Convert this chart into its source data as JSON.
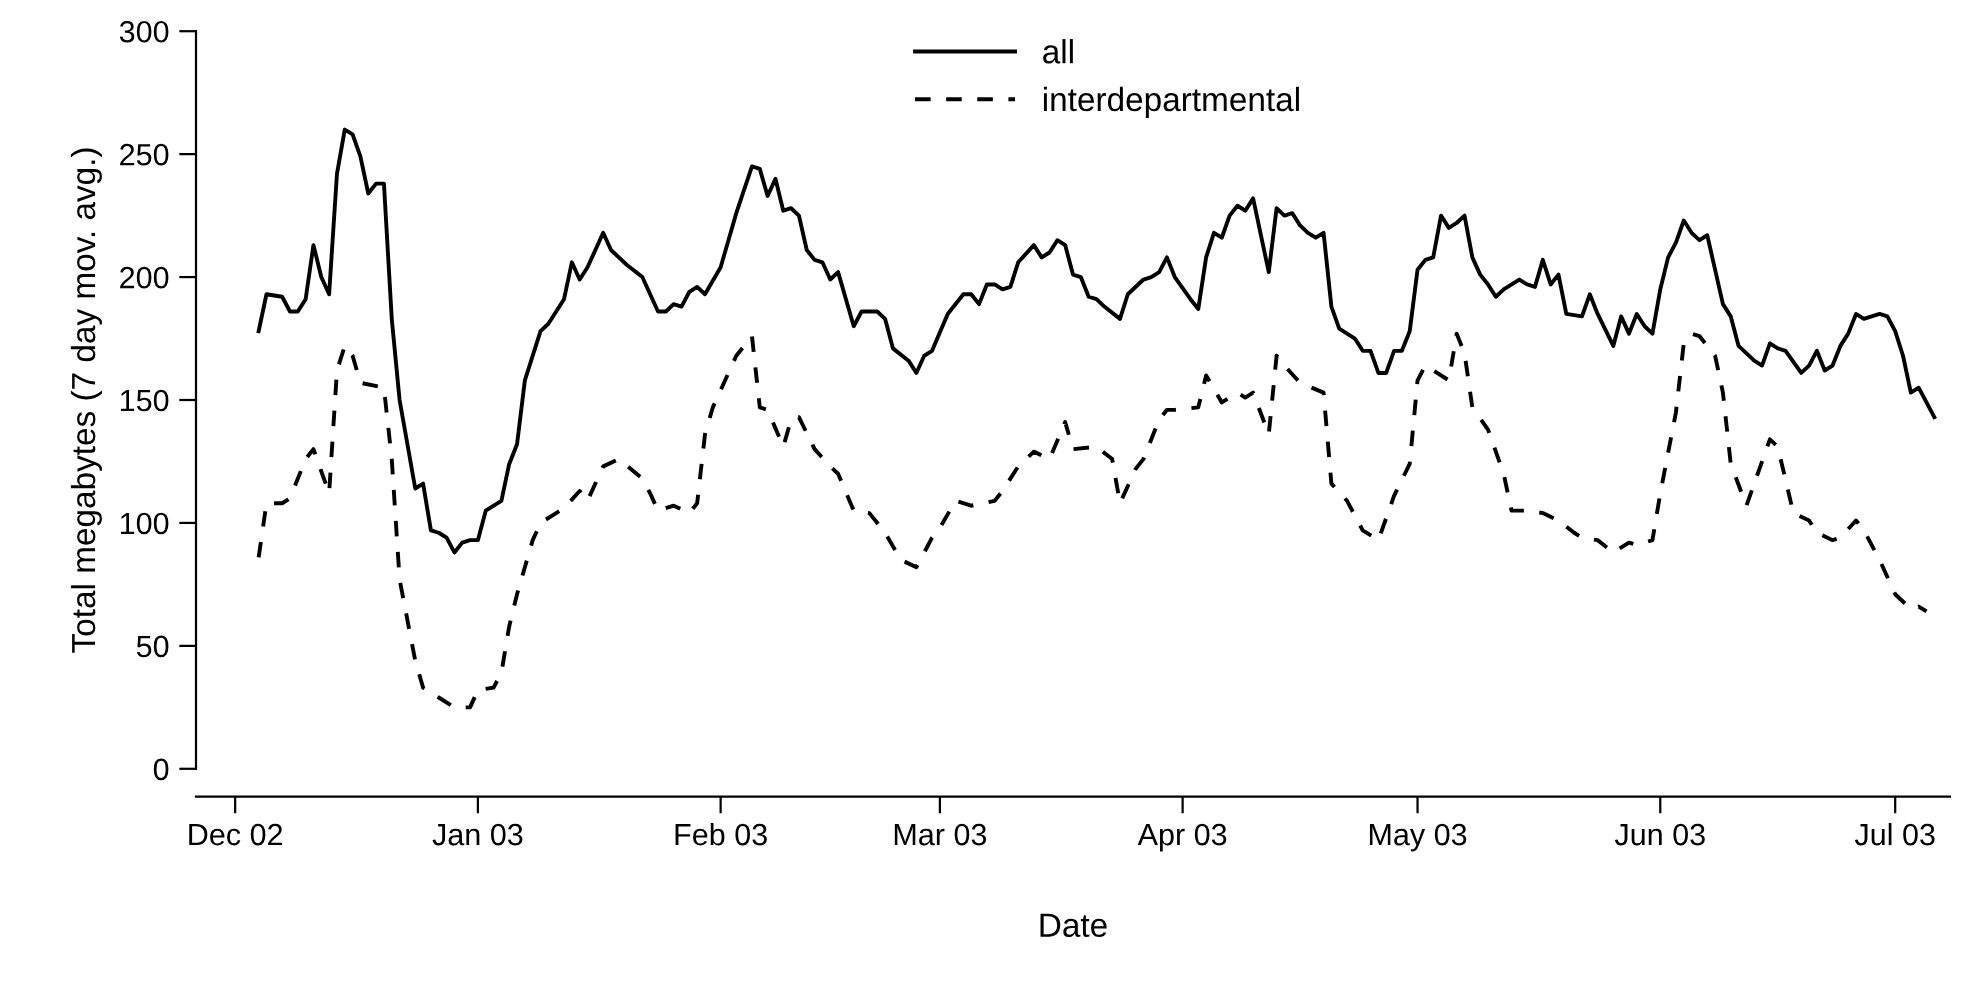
{
  "chart_data": {
    "type": "line",
    "xlabel": "Date",
    "ylabel": "Total megabytes (7 day mov. avg.)",
    "xlim": [
      "2002-11-26",
      "2003-07-08"
    ],
    "ylim": [
      0,
      300
    ],
    "xticks": [
      {
        "value": "2002-12-01",
        "label": "Dec 02"
      },
      {
        "value": "2003-01-01",
        "label": "Jan 03"
      },
      {
        "value": "2003-02-01",
        "label": "Feb 03"
      },
      {
        "value": "2003-03-01",
        "label": "Mar 03"
      },
      {
        "value": "2003-04-01",
        "label": "Apr 03"
      },
      {
        "value": "2003-05-01",
        "label": "May 03"
      },
      {
        "value": "2003-06-01",
        "label": "Jun 03"
      },
      {
        "value": "2003-07-01",
        "label": "Jul 03"
      }
    ],
    "yticks": [
      0,
      50,
      100,
      150,
      200,
      250,
      300
    ],
    "grid": false,
    "legend": "top",
    "marker": "none",
    "series": [
      {
        "name": "all",
        "color": "#000000",
        "line_style": "solid",
        "x": [
          "2002-12-04",
          "2002-12-05",
          "2002-12-07",
          "2002-12-08",
          "2002-12-09",
          "2002-12-10",
          "2002-12-11",
          "2002-12-12",
          "2002-12-13",
          "2002-12-14",
          "2002-12-15",
          "2002-12-16",
          "2002-12-17",
          "2002-12-18",
          "2002-12-19",
          "2002-12-20",
          "2002-12-21",
          "2002-12-22",
          "2002-12-24",
          "2002-12-25",
          "2002-12-26",
          "2002-12-27",
          "2002-12-28",
          "2002-12-29",
          "2002-12-30",
          "2002-12-31",
          "2003-01-01",
          "2003-01-02",
          "2003-01-04",
          "2003-01-05",
          "2003-01-06",
          "2003-01-07",
          "2003-01-09",
          "2003-01-10",
          "2003-01-12",
          "2003-01-13",
          "2003-01-14",
          "2003-01-15",
          "2003-01-17",
          "2003-01-18",
          "2003-01-19",
          "2003-01-20",
          "2003-01-22",
          "2003-01-23",
          "2003-01-24",
          "2003-01-25",
          "2003-01-26",
          "2003-01-27",
          "2003-01-28",
          "2003-01-29",
          "2003-01-30",
          "2003-02-01",
          "2003-02-02",
          "2003-02-03",
          "2003-02-05",
          "2003-02-06",
          "2003-02-07",
          "2003-02-08",
          "2003-02-09",
          "2003-02-10",
          "2003-02-11",
          "2003-02-12",
          "2003-02-13",
          "2003-02-14",
          "2003-02-15",
          "2003-02-16",
          "2003-02-18",
          "2003-02-19",
          "2003-02-21",
          "2003-02-22",
          "2003-02-23",
          "2003-02-25",
          "2003-02-26",
          "2003-02-27",
          "2003-02-28",
          "2003-03-02",
          "2003-03-04",
          "2003-03-05",
          "2003-03-06",
          "2003-03-07",
          "2003-03-08",
          "2003-03-09",
          "2003-03-10",
          "2003-03-11",
          "2003-03-13",
          "2003-03-14",
          "2003-03-15",
          "2003-03-16",
          "2003-03-17",
          "2003-03-18",
          "2003-03-19",
          "2003-03-20",
          "2003-03-21",
          "2003-03-22",
          "2003-03-24",
          "2003-03-25",
          "2003-03-27",
          "2003-03-28",
          "2003-03-29",
          "2003-03-30",
          "2003-03-31",
          "2003-04-02",
          "2003-04-03",
          "2003-04-04",
          "2003-04-05",
          "2003-04-06",
          "2003-04-07",
          "2003-04-08",
          "2003-04-09",
          "2003-04-10",
          "2003-04-12",
          "2003-04-13",
          "2003-04-14",
          "2003-04-15",
          "2003-04-16",
          "2003-04-17",
          "2003-04-18",
          "2003-04-19",
          "2003-04-20",
          "2003-04-21",
          "2003-04-23",
          "2003-04-24",
          "2003-04-25",
          "2003-04-26",
          "2003-04-27",
          "2003-04-28",
          "2003-04-29",
          "2003-04-30",
          "2003-05-01",
          "2003-05-02",
          "2003-05-03",
          "2003-05-04",
          "2003-05-05",
          "2003-05-06",
          "2003-05-07",
          "2003-05-08",
          "2003-05-09",
          "2003-05-10",
          "2003-05-11",
          "2003-05-12",
          "2003-05-14",
          "2003-05-15",
          "2003-05-16",
          "2003-05-17",
          "2003-05-18",
          "2003-05-19",
          "2003-05-20",
          "2003-05-22",
          "2003-05-23",
          "2003-05-24",
          "2003-05-26",
          "2003-05-27",
          "2003-05-28",
          "2003-05-29",
          "2003-05-30",
          "2003-05-31",
          "2003-06-01",
          "2003-06-02",
          "2003-06-03",
          "2003-06-04",
          "2003-06-05",
          "2003-06-06",
          "2003-06-07",
          "2003-06-09",
          "2003-06-10",
          "2003-06-11",
          "2003-06-13",
          "2003-06-14",
          "2003-06-15",
          "2003-06-16",
          "2003-06-17",
          "2003-06-19",
          "2003-06-20",
          "2003-06-21",
          "2003-06-22",
          "2003-06-23",
          "2003-06-24",
          "2003-06-25",
          "2003-06-26",
          "2003-06-27",
          "2003-06-29",
          "2003-06-30",
          "2003-07-01",
          "2003-07-02",
          "2003-07-03",
          "2003-07-04",
          "2003-07-06"
        ],
        "values": [
          178,
          193,
          192,
          186,
          186,
          191,
          213,
          200,
          193,
          242,
          260,
          258,
          249,
          234,
          238,
          238,
          183,
          150,
          114,
          116,
          97,
          96,
          94,
          88,
          92,
          93,
          93,
          105,
          109,
          124,
          132,
          158,
          178,
          181,
          191,
          206,
          199,
          204,
          218,
          211,
          208,
          205,
          200,
          193,
          186,
          186,
          189,
          188,
          194,
          196,
          193,
          204,
          215,
          226,
          245,
          244,
          233,
          240,
          227,
          228,
          225,
          211,
          207,
          206,
          199,
          202,
          180,
          186,
          186,
          183,
          171,
          166,
          161,
          168,
          170,
          185,
          193,
          193,
          189,
          197,
          197,
          195,
          196,
          206,
          213,
          208,
          210,
          215,
          213,
          201,
          200,
          192,
          191,
          188,
          183,
          193,
          199,
          200,
          202,
          208,
          200,
          191,
          187,
          208,
          218,
          216,
          225,
          229,
          227,
          232,
          202,
          228,
          225,
          226,
          221,
          218,
          216,
          218,
          188,
          179,
          175,
          170,
          170,
          161,
          161,
          170,
          170,
          178,
          203,
          207,
          208,
          225,
          220,
          222,
          225,
          208,
          201,
          197,
          192,
          195,
          199,
          197,
          196,
          207,
          197,
          201,
          185,
          184,
          193,
          185,
          172,
          184,
          177,
          185,
          180,
          177,
          195,
          208,
          214,
          223,
          218,
          215,
          217,
          189,
          184,
          172,
          166,
          164,
          173,
          171,
          170,
          161,
          164,
          170,
          162,
          164,
          172,
          177,
          185,
          183,
          185,
          184,
          178,
          168,
          153,
          155,
          143
        ]
      },
      {
        "name": "interdepartmental",
        "color": "#000000",
        "line_style": "dashed",
        "x": [
          "2002-12-04",
          "2002-12-05",
          "2002-12-07",
          "2002-12-08",
          "2002-12-10",
          "2002-12-11",
          "2002-12-13",
          "2002-12-14",
          "2002-12-15",
          "2002-12-16",
          "2002-12-17",
          "2002-12-20",
          "2002-12-21",
          "2002-12-22",
          "2002-12-24",
          "2002-12-25",
          "2002-12-27",
          "2002-12-29",
          "2002-12-31",
          "2003-01-01",
          "2003-01-03",
          "2003-01-04",
          "2003-01-05",
          "2003-01-06",
          "2003-01-08",
          "2003-01-09",
          "2003-01-11",
          "2003-01-12",
          "2003-01-14",
          "2003-01-15",
          "2003-01-17",
          "2003-01-19",
          "2003-01-22",
          "2003-01-23",
          "2003-01-24",
          "2003-01-26",
          "2003-01-28",
          "2003-01-29",
          "2003-01-30",
          "2003-01-31",
          "2003-02-03",
          "2003-02-05",
          "2003-02-06",
          "2003-02-07",
          "2003-02-09",
          "2003-02-10",
          "2003-02-11",
          "2003-02-13",
          "2003-02-15",
          "2003-02-16",
          "2003-02-18",
          "2003-02-20",
          "2003-02-22",
          "2003-02-24",
          "2003-02-26",
          "2003-02-28",
          "2003-03-01",
          "2003-03-03",
          "2003-03-05",
          "2003-03-08",
          "2003-03-09",
          "2003-03-11",
          "2003-03-13",
          "2003-03-15",
          "2003-03-17",
          "2003-03-18",
          "2003-03-21",
          "2003-03-23",
          "2003-03-24",
          "2003-03-26",
          "2003-03-27",
          "2003-03-29",
          "2003-03-30",
          "2003-03-31",
          "2003-04-03",
          "2003-04-04",
          "2003-04-06",
          "2003-04-08",
          "2003-04-09",
          "2003-04-10",
          "2003-04-12",
          "2003-04-13",
          "2003-04-14",
          "2003-04-16",
          "2003-04-19",
          "2003-04-20",
          "2003-04-22",
          "2003-04-24",
          "2003-04-26",
          "2003-04-28",
          "2003-04-30",
          "2003-05-01",
          "2003-05-02",
          "2003-05-03",
          "2003-05-05",
          "2003-05-06",
          "2003-05-07",
          "2003-05-08",
          "2003-05-10",
          "2003-05-12",
          "2003-05-13",
          "2003-05-15",
          "2003-05-17",
          "2003-05-19",
          "2003-05-21",
          "2003-05-22",
          "2003-05-24",
          "2003-05-26",
          "2003-05-28",
          "2003-05-29",
          "2003-05-31",
          "2003-06-01",
          "2003-06-03",
          "2003-06-04",
          "2003-06-05",
          "2003-06-06",
          "2003-06-08",
          "2003-06-09",
          "2003-06-10",
          "2003-06-12",
          "2003-06-13",
          "2003-06-15",
          "2003-06-16",
          "2003-06-18",
          "2003-06-20",
          "2003-06-21",
          "2003-06-23",
          "2003-06-24",
          "2003-06-26",
          "2003-06-27",
          "2003-06-29",
          "2003-07-01",
          "2003-07-03",
          "2003-07-04",
          "2003-07-05"
        ],
        "values": [
          86,
          108,
          108,
          110,
          126,
          130,
          112,
          162,
          172,
          168,
          157,
          155,
          126,
          77,
          44,
          33,
          29,
          25,
          25,
          32,
          33,
          39,
          58,
          71,
          93,
          100,
          104,
          106,
          113,
          109,
          123,
          126,
          118,
          112,
          105,
          107,
          104,
          108,
          136,
          147,
          168,
          176,
          147,
          146,
          131,
          142,
          143,
          130,
          123,
          120,
          105,
          104,
          96,
          85,
          82,
          94,
          98,
          109,
          107,
          109,
          113,
          123,
          129,
          126,
          141,
          130,
          131,
          126,
          108,
          122,
          126,
          142,
          146,
          146,
          147,
          160,
          149,
          153,
          151,
          153,
          136,
          168,
          164,
          157,
          153,
          116,
          109,
          97,
          93,
          111,
          124,
          158,
          164,
          162,
          158,
          177,
          169,
          147,
          138,
          120,
          105,
          105,
          104,
          101,
          96,
          94,
          93,
          88,
          92,
          91,
          93,
          112,
          145,
          173,
          177,
          176,
          168,
          153,
          124,
          107,
          116,
          134,
          131,
          104,
          101,
          96,
          93,
          94,
          101,
          97,
          85,
          71,
          65,
          66,
          64
        ]
      }
    ]
  }
}
